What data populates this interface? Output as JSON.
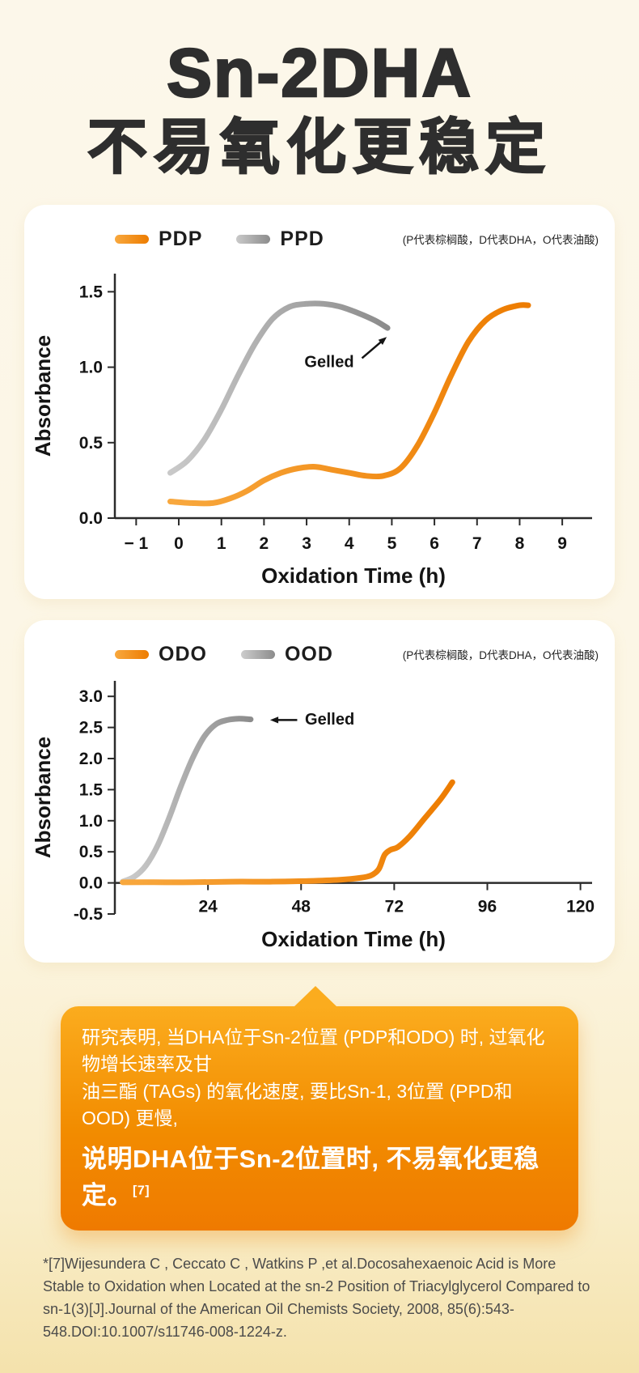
{
  "title": {
    "line1": "Sn-2DHA",
    "line2": "不易氧化更稳定"
  },
  "chart_data": [
    {
      "type": "line",
      "xlabel": "Oxidation Time (h)",
      "ylabel": "Absorbance",
      "note": "(P代表棕榈酸，D代表DHA，O代表油酸)",
      "xlim": [
        -1.5,
        9.7
      ],
      "ylim": [
        0,
        1.62
      ],
      "grid": false,
      "legend_position": "top-left",
      "xticks": {
        "values": [
          -1,
          0,
          1,
          2,
          3,
          4,
          5,
          6,
          7,
          8,
          9
        ],
        "labels": [
          "− 1",
          "0",
          "1",
          "2",
          "3",
          "4",
          "5",
          "6",
          "7",
          "8",
          "9"
        ]
      },
      "yticks": {
        "values": [
          0,
          0.5,
          1,
          1.5
        ],
        "labels": [
          "0.0",
          "0.5",
          "1.0",
          "1.5"
        ]
      },
      "annotation": {
        "text": "Gelled",
        "text_pos": [
          2.95,
          1.0
        ],
        "arrow_from": [
          4.3,
          1.06
        ],
        "arrow_to": [
          4.88,
          1.2
        ]
      },
      "series": [
        {
          "name": "PDP",
          "color": "#ED7C00",
          "color_light": "#F8A83E",
          "x": [
            -0.2,
            0.3,
            0.8,
            1.2,
            1.6,
            2.0,
            2.4,
            2.8,
            3.2,
            3.6,
            4.0,
            4.4,
            4.8,
            5.2,
            5.6,
            6.0,
            6.4,
            6.8,
            7.2,
            7.6,
            8.0,
            8.2
          ],
          "y": [
            0.11,
            0.1,
            0.1,
            0.13,
            0.18,
            0.25,
            0.3,
            0.33,
            0.34,
            0.32,
            0.3,
            0.28,
            0.28,
            0.33,
            0.48,
            0.7,
            0.95,
            1.17,
            1.31,
            1.38,
            1.41,
            1.41
          ]
        },
        {
          "name": "PPD",
          "color": "#8C8C8C",
          "color_light": "#C9C9C9",
          "x": [
            -0.2,
            0.2,
            0.6,
            1.0,
            1.4,
            1.8,
            2.2,
            2.6,
            3.0,
            3.4,
            3.8,
            4.2,
            4.6,
            4.9
          ],
          "y": [
            0.3,
            0.38,
            0.52,
            0.72,
            0.95,
            1.16,
            1.32,
            1.4,
            1.42,
            1.42,
            1.4,
            1.36,
            1.31,
            1.26
          ]
        }
      ]
    },
    {
      "type": "line",
      "xlabel": "Oxidation Time (h)",
      "ylabel": "Absorbance",
      "note": "(P代表棕榈酸，D代表DHA，O代表油酸)",
      "xlim": [
        0,
        123
      ],
      "ylim": [
        -0.5,
        3.25
      ],
      "grid": false,
      "legend_position": "top-left",
      "xticks": {
        "values": [
          24,
          48,
          72,
          96,
          120
        ],
        "labels": [
          "24",
          "48",
          "72",
          "96",
          "120"
        ]
      },
      "yticks": {
        "values": [
          -0.5,
          0,
          0.5,
          1,
          1.5,
          2,
          2.5,
          3
        ],
        "labels": [
          "-0.5",
          "0.0",
          "0.5",
          "1.0",
          "1.5",
          "2.0",
          "2.5",
          "3.0"
        ]
      },
      "annotation": {
        "text": "Gelled",
        "text_pos": [
          49,
          2.55
        ],
        "arrow_from": [
          47,
          2.62
        ],
        "arrow_to": [
          40,
          2.62
        ]
      },
      "series": [
        {
          "name": "ODO",
          "color": "#ED7C00",
          "color_light": "#F8A83E",
          "x": [
            2,
            10,
            20,
            30,
            40,
            50,
            58,
            63,
            66,
            68,
            69.5,
            71,
            73,
            76,
            80,
            84,
            87
          ],
          "y": [
            0.01,
            0.01,
            0.01,
            0.02,
            0.02,
            0.03,
            0.05,
            0.08,
            0.12,
            0.22,
            0.45,
            0.53,
            0.58,
            0.75,
            1.05,
            1.35,
            1.62
          ]
        },
        {
          "name": "OOD",
          "color": "#8C8C8C",
          "color_light": "#CDCDCD",
          "x": [
            2,
            5,
            8,
            11,
            14,
            17,
            20,
            23,
            26,
            29,
            32,
            35
          ],
          "y": [
            0.02,
            0.1,
            0.28,
            0.6,
            1.05,
            1.55,
            2.0,
            2.35,
            2.55,
            2.62,
            2.64,
            2.63
          ]
        }
      ]
    }
  ],
  "callout": {
    "lines": [
      "研究表明, 当DHA位于Sn-2位置 (PDP和ODO) 时, 过氧化物增长速率及甘",
      "油三酯 (TAGs) 的氧化速度, 要比Sn-1, 3位置 (PPD和OOD) 更慢,"
    ],
    "emphasis": "说明DHA位于Sn-2位置时, 不易氧化更稳定。",
    "reference": "[7]"
  },
  "footnote": "*[7]Wijesundera C , Ceccato C , Watkins P ,et al.Docosahexaenoic Acid is More Stable to Oxidation when Located at the sn-2 Position of Triacylglycerol Compared to sn-1(3)[J].Journal of the American Oil Chemists Society, 2008, 85(6):543-548.DOI:10.1007/s11746-008-1224-z.",
  "colors": {
    "background": "#FCF6E4",
    "accent_orange": "#ED7C00",
    "gray_series": "#8C8C8C",
    "callout_gradient_top": "#FBAC1E",
    "callout_gradient_bottom": "#EF7A00",
    "axis": "#2b2b2b"
  }
}
